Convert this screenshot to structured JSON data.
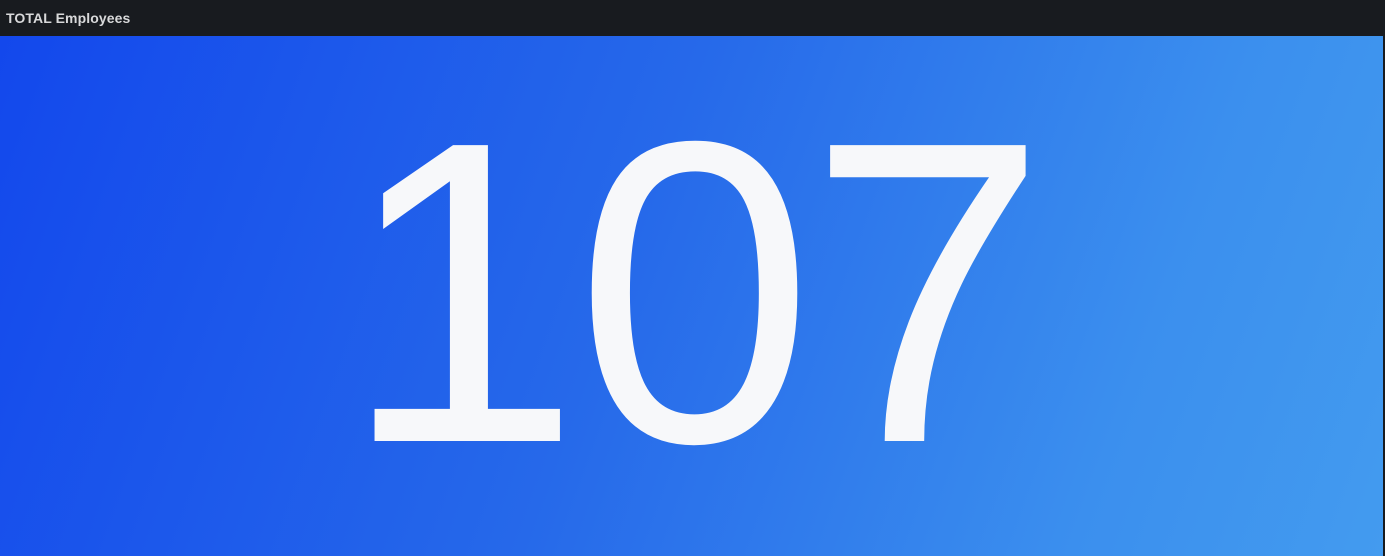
{
  "panel": {
    "title": "TOTAL Employees",
    "value": "107",
    "value_number": 107
  },
  "colors": {
    "header_background": "#181b1f",
    "title_text": "#d8d9da",
    "gradient_start": "#1348ec",
    "gradient_end": "#439bef",
    "value_text": "#f7f8fa"
  }
}
